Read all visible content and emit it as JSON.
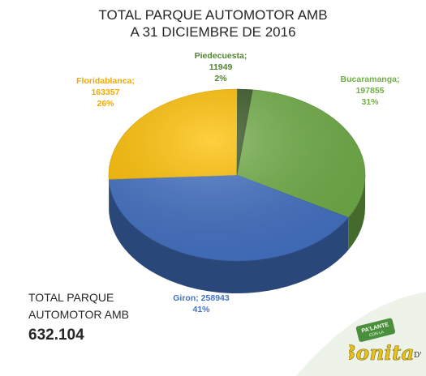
{
  "chart_data": {
    "type": "pie",
    "title": "TOTAL PARQUE AUTOMOTOR AMB",
    "subtitle": "A 31 DICIEMBRE DE 2016",
    "slices": [
      {
        "name": "Bucaramanga",
        "value": 197855,
        "percent_label": "31%",
        "color": "#70AD47"
      },
      {
        "name": "Giron",
        "value": 258943,
        "percent_label": "41%",
        "color": "#4472C4"
      },
      {
        "name": "Floridablanca",
        "value": 163357,
        "percent_label": "26%",
        "color": "#FFC000"
      },
      {
        "name": "Piedecuesta",
        "value": 11949,
        "percent_label": "2%",
        "color": "#375623"
      }
    ],
    "label_colors": {
      "Bucaramanga": "#70AD47",
      "Giron": "#4472C4",
      "Floridablanca": "#F2A900",
      "Piedecuesta": "#548235"
    }
  },
  "total": {
    "line1": "TOTAL PARQUE",
    "line2": "AUTOMOTOR AMB",
    "value": "632.104"
  },
  "logo": {
    "badge_top": "PA'LANTE",
    "badge_bottom": "CON LA",
    "script_word": "Bonita",
    "tiny_text": "D'",
    "badge_color": "#4a8f3c",
    "script_color": "#e8c21a"
  }
}
